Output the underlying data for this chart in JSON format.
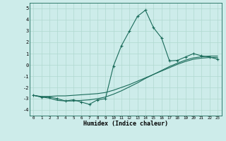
{
  "xlabel": "Humidex (Indice chaleur)",
  "bg_color": "#cdecea",
  "line_color": "#1a6b5a",
  "grid_color": "#b0d8d0",
  "xlim": [
    -0.5,
    23.5
  ],
  "ylim": [
    -4.5,
    5.5
  ],
  "xticks": [
    0,
    1,
    2,
    3,
    4,
    5,
    6,
    7,
    8,
    9,
    10,
    11,
    12,
    13,
    14,
    15,
    16,
    17,
    18,
    19,
    20,
    21,
    22,
    23
  ],
  "yticks": [
    -4,
    -3,
    -2,
    -1,
    0,
    1,
    2,
    3,
    4,
    5
  ],
  "line1_x": [
    0,
    1,
    2,
    3,
    4,
    5,
    6,
    7,
    8,
    9,
    10,
    11,
    12,
    13,
    14,
    15,
    16,
    17,
    18,
    19,
    20,
    21,
    22,
    23
  ],
  "line1_y": [
    -2.7,
    -2.85,
    -2.85,
    -3.0,
    -3.2,
    -3.1,
    -3.3,
    -3.5,
    -3.1,
    -3.0,
    -0.1,
    1.7,
    3.0,
    4.3,
    4.85,
    3.3,
    2.4,
    0.35,
    0.4,
    0.7,
    1.0,
    0.8,
    0.7,
    0.5
  ],
  "line2_x": [
    0,
    1,
    2,
    3,
    4,
    5,
    6,
    7,
    8,
    9,
    10,
    11,
    12,
    13,
    14,
    15,
    16,
    17,
    18,
    19,
    20,
    21,
    22,
    23
  ],
  "line2_y": [
    -2.7,
    -2.8,
    -2.8,
    -2.75,
    -2.75,
    -2.7,
    -2.65,
    -2.6,
    -2.55,
    -2.45,
    -2.25,
    -2.0,
    -1.75,
    -1.45,
    -1.15,
    -0.85,
    -0.55,
    -0.25,
    0.05,
    0.3,
    0.5,
    0.6,
    0.65,
    0.65
  ],
  "line3_x": [
    0,
    1,
    2,
    3,
    4,
    5,
    6,
    7,
    8,
    9,
    10,
    11,
    12,
    13,
    14,
    15,
    16,
    17,
    18,
    19,
    20,
    21,
    22,
    23
  ],
  "line3_y": [
    -2.7,
    -2.85,
    -2.95,
    -3.15,
    -3.2,
    -3.2,
    -3.15,
    -3.1,
    -3.0,
    -2.85,
    -2.6,
    -2.3,
    -1.95,
    -1.6,
    -1.2,
    -0.85,
    -0.5,
    -0.15,
    0.15,
    0.42,
    0.62,
    0.72,
    0.78,
    0.78
  ]
}
